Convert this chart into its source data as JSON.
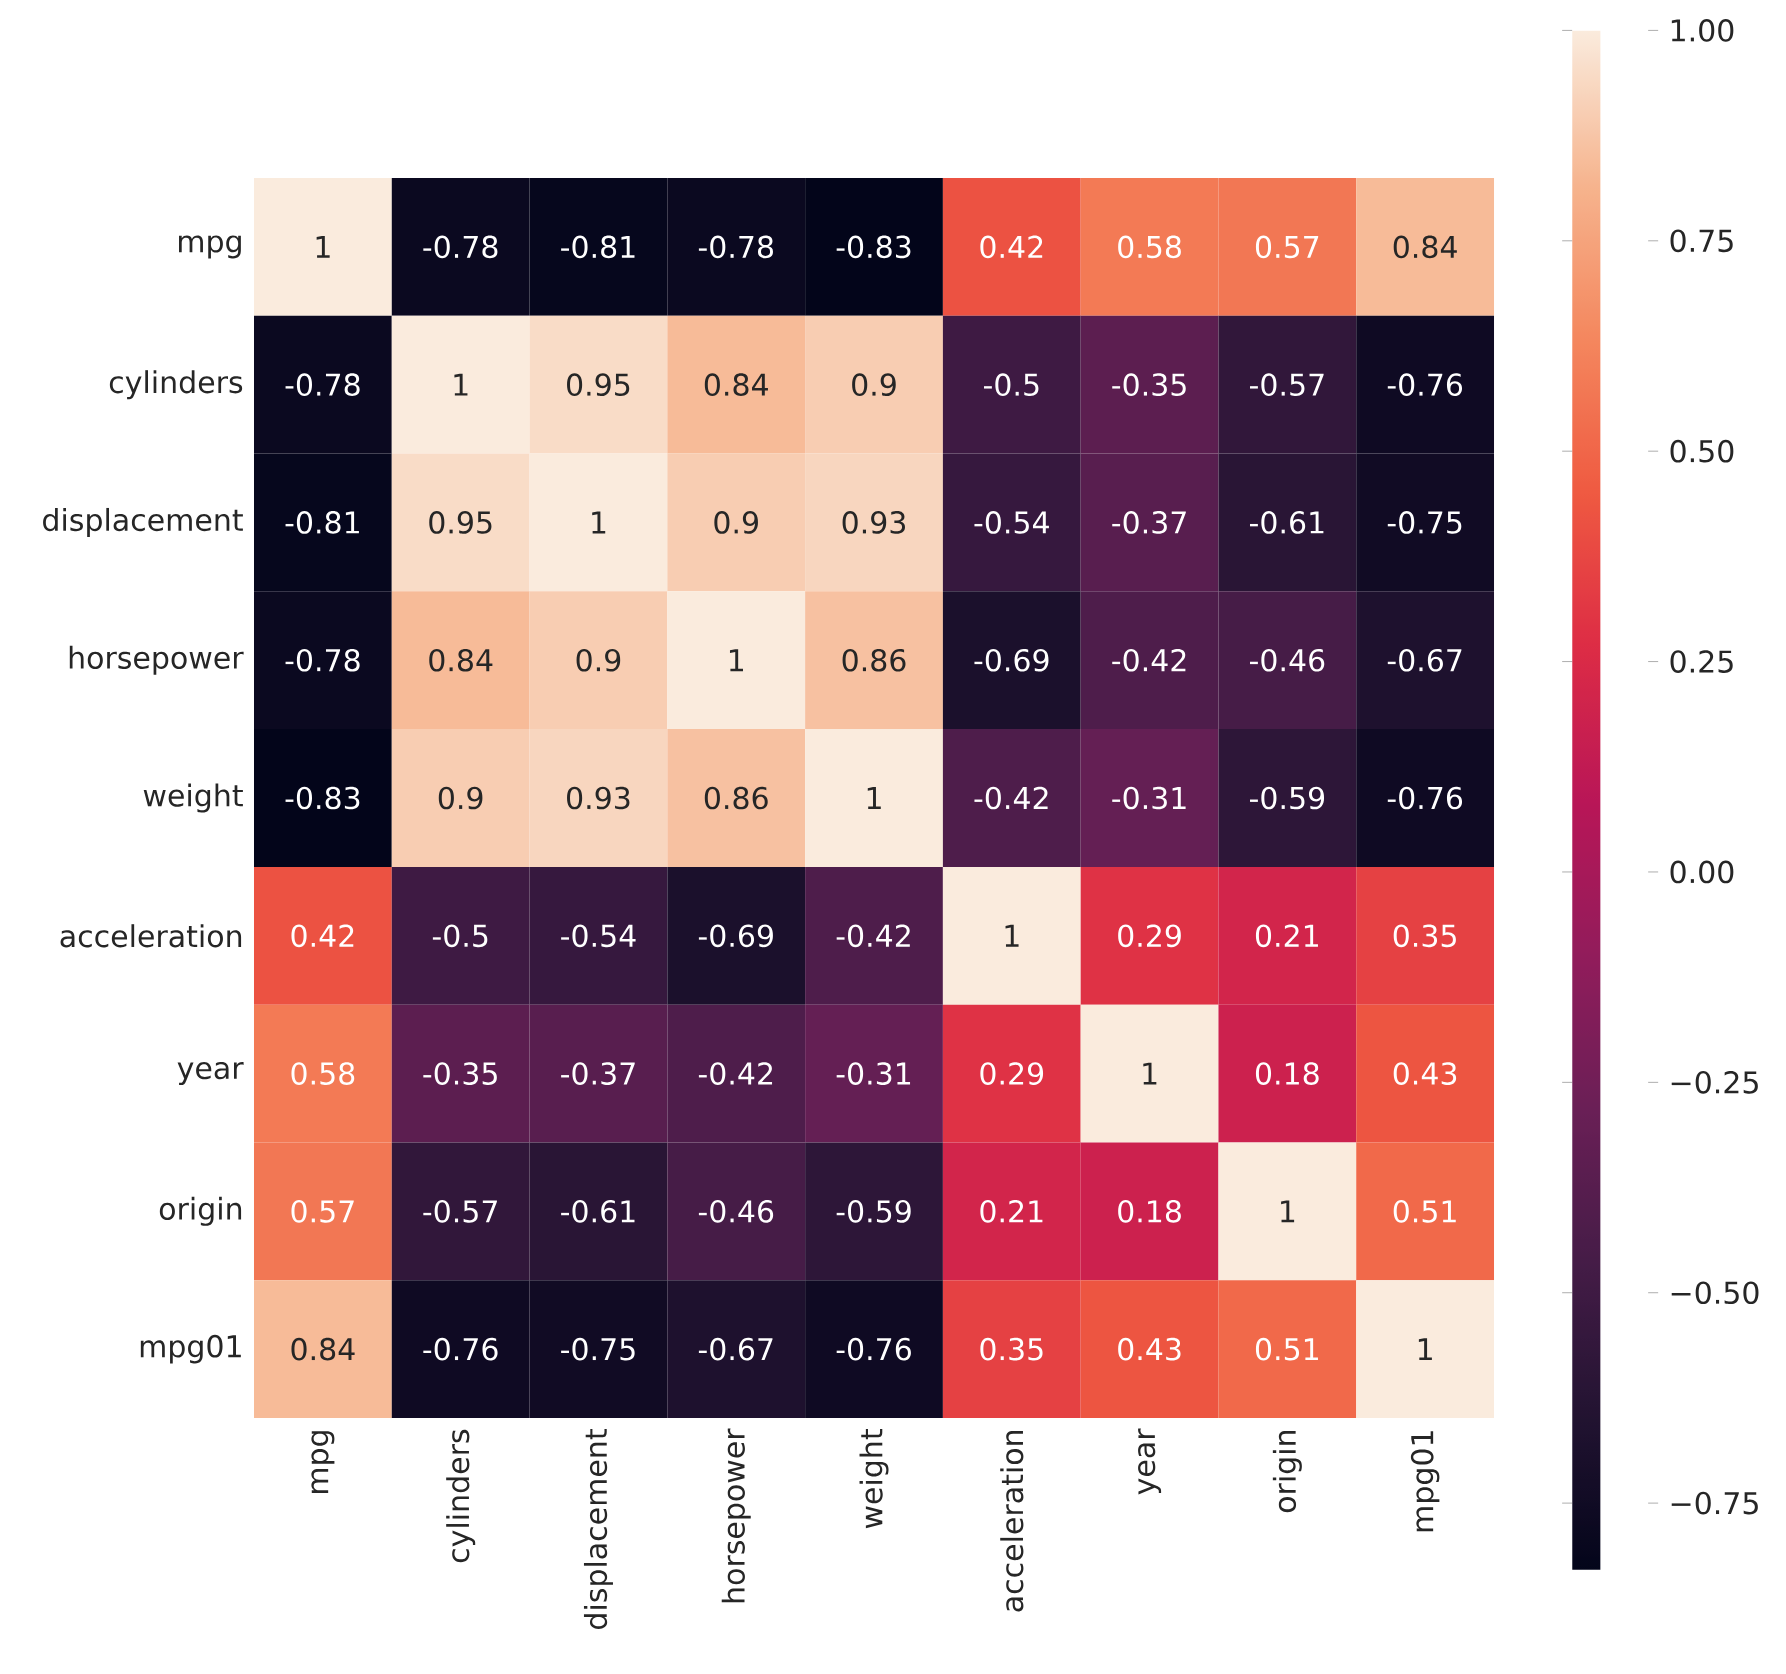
{
  "chart_data": {
    "type": "heatmap",
    "categories": [
      "mpg",
      "cylinders",
      "displacement",
      "horsepower",
      "weight",
      "acceleration",
      "year",
      "origin",
      "mpg01"
    ],
    "y_categories": [
      "mpg",
      "cylinders",
      "displacement",
      "horsepower",
      "weight",
      "acceleration",
      "year",
      "origin",
      "mpg01"
    ],
    "cells": [
      [
        1,
        -0.78,
        -0.81,
        -0.78,
        -0.83,
        0.42,
        0.58,
        0.57,
        0.84
      ],
      [
        -0.78,
        1,
        0.95,
        0.84,
        0.9,
        -0.5,
        -0.35,
        -0.57,
        -0.76
      ],
      [
        -0.81,
        0.95,
        1,
        0.9,
        0.93,
        -0.54,
        -0.37,
        -0.61,
        -0.75
      ],
      [
        -0.78,
        0.84,
        0.9,
        1,
        0.86,
        -0.69,
        -0.42,
        -0.46,
        -0.67
      ],
      [
        -0.83,
        0.9,
        0.93,
        0.86,
        1,
        -0.42,
        -0.31,
        -0.59,
        -0.76
      ],
      [
        0.42,
        -0.5,
        -0.54,
        -0.69,
        -0.42,
        1,
        0.29,
        0.21,
        0.35
      ],
      [
        0.58,
        -0.35,
        -0.37,
        -0.42,
        -0.31,
        0.29,
        1,
        0.18,
        0.43
      ],
      [
        0.57,
        -0.57,
        -0.61,
        -0.46,
        -0.59,
        0.21,
        0.18,
        1,
        0.51
      ],
      [
        0.84,
        -0.76,
        -0.75,
        -0.67,
        -0.76,
        0.35,
        0.43,
        0.51,
        1
      ]
    ],
    "data_labels": true,
    "clim": [
      -0.83,
      1
    ],
    "cticks": [
      {
        "value": 1,
        "label": "1.00"
      },
      {
        "value": 0.75,
        "label": "0.75"
      },
      {
        "value": 0.5,
        "label": "0.50"
      },
      {
        "value": 0.25,
        "label": "0.25"
      },
      {
        "value": 0,
        "label": "0.00"
      },
      {
        "value": -0.25,
        "label": "−0.25"
      },
      {
        "value": -0.5,
        "label": "−0.50"
      },
      {
        "value": -0.75,
        "label": "−0.75"
      }
    ]
  }
}
